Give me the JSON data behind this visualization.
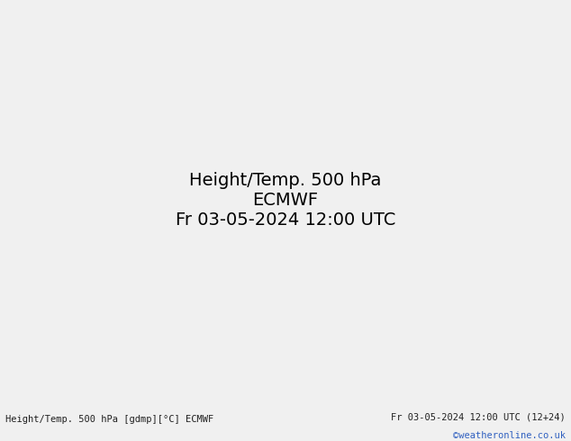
{
  "title_left": "Height/Temp. 500 hPa [gdmp][°C] ECMWF",
  "title_right": "Fr 03-05-2024 12:00 UTC (12+24)",
  "title_right2": "©weatheronline.co.uk",
  "background_color": "#d8d8d8",
  "land_color_high": "#b8d89a",
  "land_color_low": "#c8e8a8",
  "sea_color": "#e8e8e8",
  "bottom_bar_color": "#f0f0f0",
  "text_color_left": "#202020",
  "text_color_right": "#202020",
  "credit_color": "#3060c0",
  "figsize": [
    6.34,
    4.9
  ],
  "dpi": 100,
  "extent": [
    80,
    180,
    -15,
    55
  ],
  "geopotential_color": "#000000",
  "temp_cold_color": "#ff8c00",
  "temp_warm_color": "#ff0000",
  "temp_very_cold_color": "#00b0b0"
}
